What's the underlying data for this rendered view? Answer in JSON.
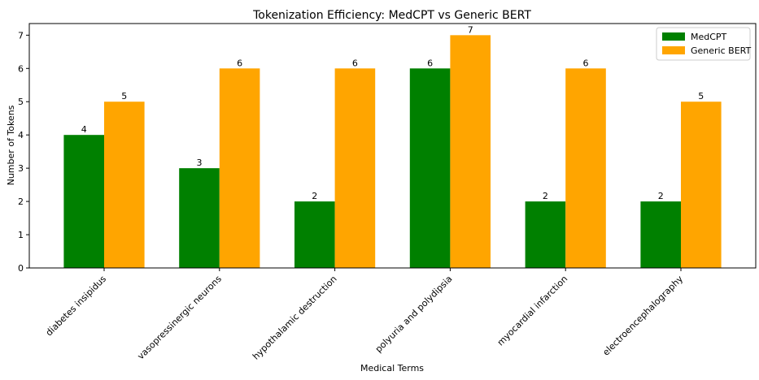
{
  "chart_data": {
    "type": "bar",
    "title": "Tokenization Efficiency: MedCPT vs Generic BERT",
    "xlabel": "Medical Terms",
    "ylabel": "Number of Tokens",
    "categories": [
      "diabetes insipidus",
      "vasopressinergic neurons",
      "hypothalamic destruction",
      "polyuria and polydipsia",
      "myocardial infarction",
      "electroencephalography"
    ],
    "series": [
      {
        "name": "MedCPT",
        "color": "#008000",
        "values": [
          4,
          3,
          2,
          6,
          2,
          2
        ]
      },
      {
        "name": "Generic BERT",
        "color": "#FFA500",
        "values": [
          5,
          6,
          6,
          7,
          6,
          5
        ]
      }
    ],
    "ylim": [
      0,
      7.35
    ],
    "yticks": [
      "0",
      "1",
      "2",
      "3",
      "4",
      "5",
      "6",
      "7"
    ],
    "grid": false,
    "legend_position": "top-right"
  }
}
